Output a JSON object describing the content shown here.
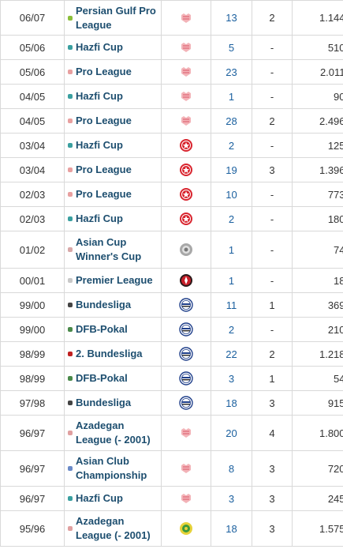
{
  "colors": {
    "link": "#1d4e6f",
    "apps": "#1a5f9e",
    "border": "#d9d9d9"
  },
  "rows": [
    {
      "season": "06/07",
      "competition": "Persian Gulf Pro League",
      "icon": "persian-gulf-pro-league-icon",
      "club": "persepolis-crest",
      "apps": "13",
      "goals": "2",
      "minutes": "1.144'",
      "h": 44
    },
    {
      "season": "05/06",
      "competition": "Hazfi Cup",
      "icon": "hazfi-cup-icon",
      "club": "persepolis-crest",
      "apps": "5",
      "goals": "-",
      "minutes": "510'",
      "h": 31
    },
    {
      "season": "05/06",
      "competition": "Pro League",
      "icon": "pro-league-icon",
      "club": "persepolis-crest",
      "apps": "23",
      "goals": "-",
      "minutes": "2.011'",
      "h": 31
    },
    {
      "season": "04/05",
      "competition": "Hazfi Cup",
      "icon": "hazfi-cup-icon",
      "club": "persepolis-crest",
      "apps": "1",
      "goals": "-",
      "minutes": "90'",
      "h": 31
    },
    {
      "season": "04/05",
      "competition": "Pro League",
      "icon": "pro-league-icon",
      "club": "persepolis-crest",
      "apps": "28",
      "goals": "2",
      "minutes": "2.496'",
      "h": 31
    },
    {
      "season": "03/04",
      "competition": "Hazfi Cup",
      "icon": "hazfi-cup-icon",
      "club": "red-round-crest",
      "apps": "2",
      "goals": "-",
      "minutes": "125'",
      "h": 31
    },
    {
      "season": "03/04",
      "competition": "Pro League",
      "icon": "pro-league-icon",
      "club": "red-round-crest",
      "apps": "19",
      "goals": "3",
      "minutes": "1.396'",
      "h": 31
    },
    {
      "season": "02/03",
      "competition": "Pro League",
      "icon": "pro-league-icon",
      "club": "red-round-crest",
      "apps": "10",
      "goals": "-",
      "minutes": "773'",
      "h": 31
    },
    {
      "season": "02/03",
      "competition": "Hazfi Cup",
      "icon": "hazfi-cup-icon",
      "club": "red-round-crest",
      "apps": "2",
      "goals": "-",
      "minutes": "180'",
      "h": 31
    },
    {
      "season": "01/02",
      "competition": "Asian Cup Winner's Cup",
      "icon": "asian-cup-winners-cup-icon",
      "club": "grey-round-crest",
      "apps": "1",
      "goals": "-",
      "minutes": "74'",
      "h": 47
    },
    {
      "season": "00/01",
      "competition": "Premier League",
      "icon": "premier-league-icon",
      "club": "dark-red-round-crest",
      "apps": "1",
      "goals": "-",
      "minutes": "18'",
      "h": 31
    },
    {
      "season": "99/00",
      "competition": "Bundesliga",
      "icon": "bundesliga-icon",
      "club": "bielefeld-crest",
      "apps": "11",
      "goals": "1",
      "minutes": "369'",
      "h": 31
    },
    {
      "season": "99/00",
      "competition": "DFB-Pokal",
      "icon": "dfb-pokal-icon",
      "club": "bielefeld-crest",
      "apps": "2",
      "goals": "-",
      "minutes": "210'",
      "h": 31
    },
    {
      "season": "98/99",
      "competition": "2. Bundesliga",
      "icon": "2-bundesliga-icon",
      "club": "bielefeld-crest",
      "apps": "22",
      "goals": "2",
      "minutes": "1.218'",
      "h": 31
    },
    {
      "season": "98/99",
      "competition": "DFB-Pokal",
      "icon": "dfb-pokal-icon",
      "club": "bielefeld-crest",
      "apps": "3",
      "goals": "1",
      "minutes": "54'",
      "h": 31
    },
    {
      "season": "97/98",
      "competition": "Bundesliga",
      "icon": "bundesliga-icon",
      "club": "bielefeld-crest",
      "apps": "18",
      "goals": "3",
      "minutes": "915'",
      "h": 31
    },
    {
      "season": "96/97",
      "competition": "Azadegan League (- 2001)",
      "icon": "azadegan-league-icon",
      "club": "persepolis-crest",
      "apps": "20",
      "goals": "4",
      "minutes": "1.800'",
      "h": 45
    },
    {
      "season": "96/97",
      "competition": "Asian Club Championship",
      "icon": "asian-club-championship-icon",
      "club": "persepolis-crest",
      "apps": "8",
      "goals": "3",
      "minutes": "720'",
      "h": 45
    },
    {
      "season": "96/97",
      "competition": "Hazfi Cup",
      "icon": "hazfi-cup-icon",
      "club": "persepolis-crest",
      "apps": "3",
      "goals": "3",
      "minutes": "245'",
      "h": 31
    },
    {
      "season": "95/96",
      "competition": "Azadegan League (- 2001)",
      "icon": "azadegan-league-icon",
      "club": "yellow-green-round-crest",
      "apps": "18",
      "goals": "3",
      "minutes": "1.575'",
      "h": 45
    }
  ]
}
